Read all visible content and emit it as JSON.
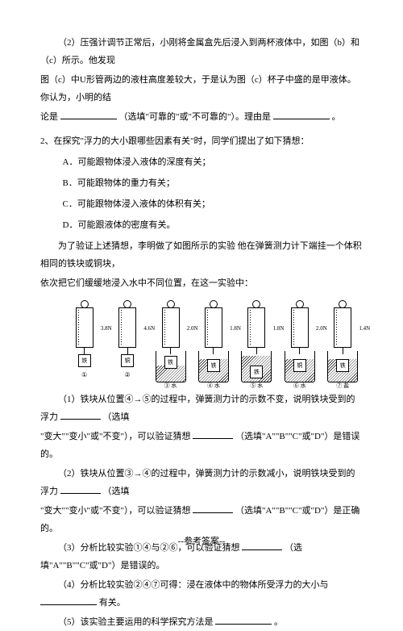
{
  "p1": {
    "line1": "（2）压强计调节正常后，小刚将金属盒先后浸入到两杯液体中，如图（b）和（c）所示。他发现",
    "line2": "图（c）中U形管两边的液柱高度差较大，于是认为图（c）杯子中盛的是甲液体。你认为，小明的结",
    "line3a": "论是",
    "line3b": "（选填\"可靠的\"或\"不可靠的\"）。理由是",
    "line3c": "。"
  },
  "q2": {
    "stem": "2、在探究\"浮力的大小跟哪些因素有关\"时，同学们提出了如下猜想：",
    "optA": "A．可能跟物体浸入液体的深度有关；",
    "optB": "B．可能跟物体的重力有关；",
    "optC": "C．可能跟物体浸入液体的体积有关；",
    "optD": "D．可能跟液体的密度有关。",
    "desc1": "为了验证上述猜想，李明做了如图所示的实验 他在弹簧测力计下端挂一个体积相同的铁块或铜块，",
    "desc2": "依次把它们缓缓地浸入水中不同位置，在这一实验中："
  },
  "diagram": {
    "units": [
      {
        "num": "①",
        "reading": "3.8N",
        "blockLabel": "铁",
        "beaker": false
      },
      {
        "num": "②",
        "reading": "4.6N",
        "blockLabel": "铜",
        "beaker": false
      },
      {
        "num": "③",
        "reading": "2.0N",
        "blockLabel": "铁",
        "beaker": true,
        "waterH": 20,
        "blockTop": 6,
        "liquid": "水"
      },
      {
        "num": "④",
        "reading": "1.8N",
        "blockLabel": "铁",
        "beaker": true,
        "waterH": 28,
        "blockTop": 10,
        "liquid": "水"
      },
      {
        "num": "⑤",
        "reading": "1.8N",
        "blockLabel": "铁",
        "beaker": true,
        "waterH": 32,
        "blockTop": 18,
        "liquid": "水"
      },
      {
        "num": "⑥",
        "reading": "2.0N",
        "blockLabel": "铜",
        "beaker": true,
        "waterH": 28,
        "blockTop": 10,
        "liquid": "水"
      },
      {
        "num": "⑦",
        "reading": "1.4N",
        "blockLabel": "铁",
        "beaker": true,
        "waterH": 28,
        "blockTop": 10,
        "liquid": "盐"
      }
    ]
  },
  "sub": {
    "s1a": "（1）铁块从位置④→⑤的过程中，弹簧测力计的示数不变，说明铁块受到的浮力",
    "s1b": "（选填",
    "s1c": "\"变大\"\"变小\"或\"不变\"），可以验证猜想",
    "s1d": "（选填\"A\"\"B\"\"C\"或\"D\"）是错误的。",
    "s2a": "（2）铁块从位置③→④的过程中，弹簧测力计的示数减小，说明铁块受到的浮力",
    "s2b": "（选填",
    "s2c": "\"变大\"\"变小\"或\"不变\"），可以验证猜想",
    "s2d": "（选填\"A\"\"B\"\"C\"或\"D\"）是正确的。",
    "s3a": "（3）分析比较实验①④与②⑥，可以验证猜想",
    "s3b": "（选填\"A\"\"B\"\"C\"或\"D\"）是错误的。",
    "s4a": "（4）分析比较实验②④⑦可得：浸在液体中的物体所受浮力的大小与",
    "s4b": "有关。",
    "s5a": "（5）该实验主要运用的科学探究方法是",
    "s5b": "。"
  },
  "footer": "--参考答案--"
}
